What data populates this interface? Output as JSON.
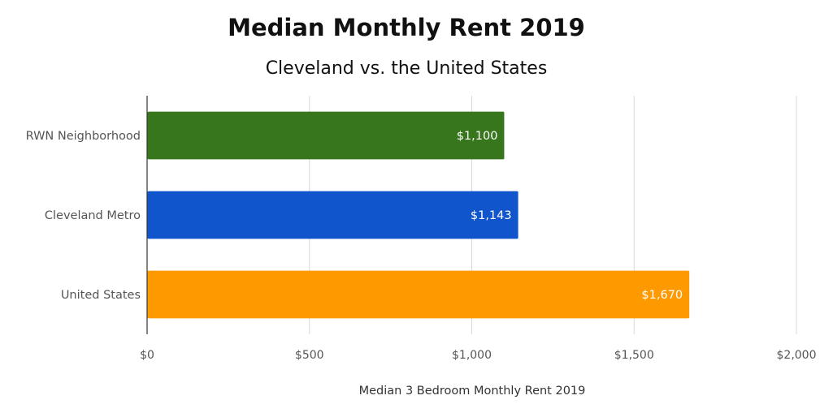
{
  "chart_data": {
    "type": "bar",
    "orientation": "horizontal",
    "title": "Median Monthly Rent 2019",
    "subtitle": "Cleveland vs. the United States",
    "xlabel": "Median 3 Bedroom Monthly Rent 2019",
    "ylabel": "",
    "categories": [
      "RWN Neighborhood",
      "Cleveland Metro",
      "United States"
    ],
    "values": [
      1100,
      1143,
      1670
    ],
    "value_labels": [
      "$1,100",
      "$1,143",
      "$1,670"
    ],
    "bar_colors": [
      "#38761d",
      "#1155cc",
      "#ff9900"
    ],
    "xlim": [
      0,
      2000
    ],
    "x_ticks": [
      0,
      500,
      1000,
      1500,
      2000
    ],
    "x_tick_labels": [
      "$0",
      "$500",
      "$1,000",
      "$1,500",
      "$2,000"
    ],
    "grid": "vertical",
    "legend": "none"
  }
}
